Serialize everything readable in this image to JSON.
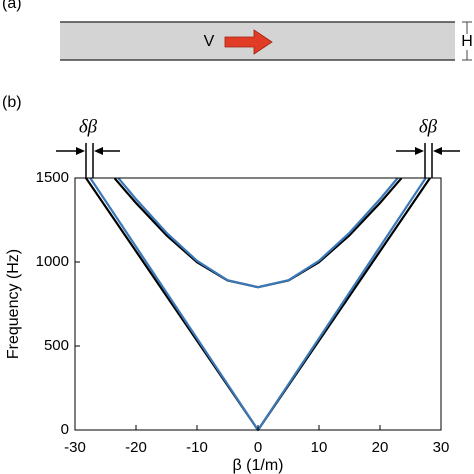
{
  "panel_a": {
    "label": "(a)",
    "velocity_label": "V",
    "thickness_label": "H"
  },
  "panel_b": {
    "label": "(b)",
    "annotations": [
      "δβ",
      "δβ"
    ]
  },
  "chart_data": {
    "type": "line",
    "xlabel": "β (1/m)",
    "ylabel": "Frequency (Hz)",
    "xlim": [
      -30,
      30
    ],
    "ylim": [
      0,
      1500
    ],
    "xticks": [
      -30,
      -20,
      -10,
      0,
      10,
      20,
      30
    ],
    "yticks": [
      0,
      500,
      1000,
      1500
    ],
    "series": [
      {
        "color": "#000000",
        "x": [
          -28.2,
          0,
          28.2
        ],
        "values": [
          1500,
          0,
          1500
        ]
      },
      {
        "color": "#3a78b8",
        "x": [
          -27.5,
          0,
          27.5
        ],
        "values": [
          1500,
          0,
          1500
        ]
      },
      {
        "color": "#000000",
        "x": [
          -23.5,
          -20,
          -15,
          -10,
          -5,
          0,
          5,
          10,
          15,
          20,
          23.5
        ],
        "values": [
          1498,
          1351,
          1159,
          999,
          890,
          850,
          890,
          999,
          1159,
          1351,
          1498
        ]
      },
      {
        "color": "#3a78b8",
        "x": [
          -22.9,
          -20,
          -15,
          -10,
          -5,
          0,
          5,
          10,
          15,
          20,
          22.9
        ],
        "values": [
          1500,
          1374,
          1174,
          1007,
          892,
          850,
          892,
          1007,
          1174,
          1374,
          1500
        ]
      }
    ]
  }
}
